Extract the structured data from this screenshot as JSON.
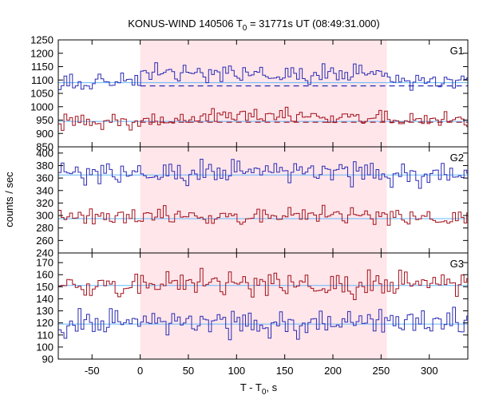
{
  "chart_data": {
    "type": "line",
    "title": {
      "main": "KONUS-WIND 140506 T",
      "sub": "0",
      "rest": " = 31771s UT (08:49:31.000)"
    },
    "xlabel": {
      "main": "T - T",
      "sub": "0",
      "rest": ", s"
    },
    "ylabel": "counts / sec",
    "xlim": [
      -85,
      340
    ],
    "xticks": [
      -50,
      0,
      50,
      100,
      150,
      200,
      250,
      300
    ],
    "highlight_interval": [
      0,
      256
    ],
    "colors": {
      "series_a": "#2b2bb5",
      "series_b": "#a3101b",
      "background_fit": "#63b8ff",
      "highlight": "#ffe6ea",
      "axis": "#000000"
    },
    "panels": [
      {
        "label": "G1",
        "ylim": [
          850,
          1250
        ],
        "yticks": [
          850,
          900,
          950,
          1000,
          1050,
          1100,
          1150,
          1200,
          1250
        ],
        "series": [
          {
            "color": "series_a",
            "base": 1090,
            "burst": 1120,
            "rise_at": 0,
            "noise": 22,
            "background": 1090,
            "dashed": 1078
          },
          {
            "color": "series_b",
            "base": 945,
            "burst": 962,
            "rise_at": 65,
            "noise": 18,
            "background": 945,
            "dashed": 942
          }
        ]
      },
      {
        "label": "G2",
        "ylim": [
          240,
          410
        ],
        "yticks": [
          240,
          260,
          280,
          300,
          320,
          340,
          360,
          380,
          400
        ],
        "series": [
          {
            "color": "series_a",
            "base": 365,
            "burst": 368,
            "rise_at": 0,
            "noise": 12,
            "background": 365
          },
          {
            "color": "series_b",
            "base": 295,
            "burst": 298,
            "rise_at": 0,
            "noise": 9,
            "background": 295
          }
        ]
      },
      {
        "label": "G3",
        "ylim": [
          90,
          178
        ],
        "yticks": [
          90,
          100,
          110,
          120,
          130,
          140,
          150,
          160,
          170
        ],
        "series": [
          {
            "color": "series_a",
            "base": 119,
            "burst": 119,
            "rise_at": 0,
            "noise": 7,
            "background": 119
          },
          {
            "color": "series_b",
            "base": 151,
            "burst": 151,
            "rise_at": 0,
            "noise": 7,
            "background": 151
          }
        ]
      }
    ]
  }
}
